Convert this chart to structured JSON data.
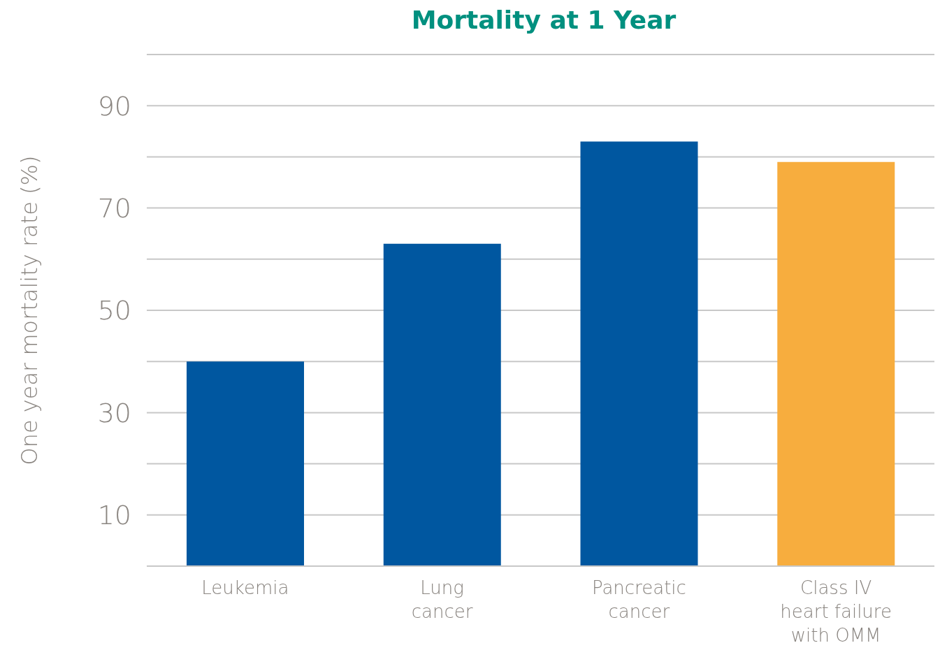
{
  "chart_data": {
    "type": "bar",
    "title": "Mortality at 1 Year",
    "ylabel": "One year mortality rate (%)",
    "categories": [
      "Leukemia",
      "Lung\ncancer",
      "Pancreatic\ncancer",
      "Class IV\nheart failure\nwith OMM"
    ],
    "values": [
      40,
      63,
      83,
      79
    ],
    "colors": [
      "#0057a0",
      "#0057a0",
      "#0057a0",
      "#f7ad3e"
    ],
    "ylim": [
      0,
      100
    ],
    "yticks": [
      {
        "value": 0,
        "label": null
      },
      10,
      {
        "value": 20,
        "label": null
      },
      30,
      {
        "value": 40,
        "label": null
      },
      50,
      {
        "value": 60,
        "label": null
      },
      70,
      {
        "value": 80,
        "label": null
      },
      90,
      {
        "value": 100,
        "label": null
      }
    ],
    "grid": "y"
  }
}
